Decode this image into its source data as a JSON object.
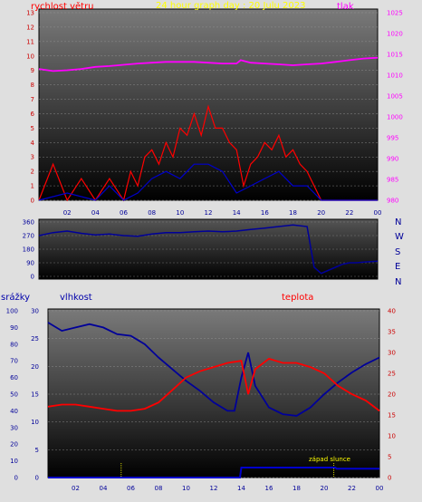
{
  "header": {
    "wind_label": "rychlost větru",
    "title": "24 hour graph day : 20 Julu 2023",
    "pressure_label": "tlak"
  },
  "directions": [
    "N",
    "W",
    "S",
    "E",
    "N"
  ],
  "bottom_labels": {
    "rain": "srážky",
    "humidity": "vlhkost",
    "temperature": "teplota",
    "sunset": "západ slunce"
  },
  "colors": {
    "wind": "#ff0000",
    "gust": "#0000cc",
    "pressure": "#ff00ff",
    "direction": "#000099",
    "humidity": "#000099",
    "temperature": "#ff0000",
    "rain": "#0000cc",
    "left_axis_text": "#cc0000",
    "right_axis_text": "#ff00ff",
    "title_text": "#ffff00"
  },
  "chart_data": [
    {
      "type": "line",
      "x_ticks": [
        "02",
        "04",
        "06",
        "08",
        "10",
        "12",
        "14",
        "16",
        "18",
        "20",
        "22",
        "00"
      ],
      "y_left_ticks": [
        0,
        1,
        2,
        3,
        4,
        5,
        6,
        7,
        8,
        9,
        10,
        11,
        12,
        13
      ],
      "y_left_range": [
        0,
        13
      ],
      "y_right_ticks": [
        980,
        985,
        990,
        995,
        1000,
        1005,
        1010,
        1015,
        1020,
        1025
      ],
      "y_right_range": [
        980,
        1025
      ],
      "series": [
        {
          "name": "tlak",
          "axis": "right",
          "x": [
            0,
            1,
            2,
            3,
            4,
            5,
            6,
            7,
            8,
            9,
            10,
            11,
            12,
            13,
            14,
            14.3,
            15,
            16,
            17,
            18,
            19,
            20,
            21,
            22,
            23,
            24
          ],
          "values": [
            1011.5,
            1011.0,
            1011.2,
            1011.5,
            1012.0,
            1012.2,
            1012.5,
            1012.8,
            1013.0,
            1013.2,
            1013.2,
            1013.2,
            1013.0,
            1012.8,
            1012.8,
            1013.6,
            1013.0,
            1012.8,
            1012.6,
            1012.4,
            1012.6,
            1012.8,
            1013.2,
            1013.6,
            1014.0,
            1014.2
          ]
        },
        {
          "name": "rychlost větru",
          "axis": "left",
          "x": [
            0,
            1,
            2,
            3,
            4,
            5,
            6,
            6.5,
            7,
            7.5,
            8,
            8.5,
            9,
            9.5,
            10,
            10.5,
            11,
            11.5,
            12,
            12.5,
            13,
            13.5,
            14,
            14.5,
            15,
            15.5,
            16,
            16.5,
            17,
            17.5,
            18,
            18.5,
            19,
            19.5,
            20,
            21,
            22,
            23,
            24
          ],
          "values": [
            0,
            2.5,
            0,
            1.5,
            0,
            1.5,
            0,
            2,
            1,
            3,
            3.5,
            2.5,
            4,
            3,
            5,
            4.5,
            6,
            4.5,
            6.5,
            5,
            5,
            4,
            3.5,
            1,
            2.5,
            3,
            4,
            3.5,
            4.5,
            3,
            3.5,
            2.5,
            2,
            1,
            0,
            0,
            0,
            0,
            0
          ]
        },
        {
          "name": "gust",
          "axis": "left",
          "x": [
            0,
            2,
            4,
            5,
            6,
            7,
            8,
            9,
            10,
            11,
            12,
            13,
            14,
            15,
            16,
            17,
            18,
            19,
            19.5,
            20,
            22,
            24
          ],
          "values": [
            0,
            0.5,
            0,
            1,
            0,
            0.5,
            1.5,
            2,
            1.5,
            2.5,
            2.5,
            2,
            0.5,
            1,
            1.5,
            2,
            1,
            1,
            0.5,
            0,
            0,
            0
          ]
        }
      ]
    },
    {
      "type": "line",
      "x_ticks": [
        "02",
        "04",
        "06",
        "08",
        "10",
        "12",
        "14",
        "16",
        "18",
        "20",
        "22",
        "00"
      ],
      "y_ticks": [
        0,
        90,
        180,
        270,
        360
      ],
      "y_range": [
        0,
        360
      ],
      "series": [
        {
          "name": "direction",
          "x": [
            0,
            1,
            2,
            3,
            4,
            5,
            6,
            7,
            8,
            9,
            10,
            11,
            12,
            13,
            14,
            15,
            16,
            17,
            18,
            19,
            19.5,
            20,
            21,
            21.5,
            22,
            22.5,
            23,
            24
          ],
          "values": [
            270,
            290,
            300,
            285,
            275,
            280,
            270,
            265,
            280,
            290,
            290,
            295,
            300,
            295,
            300,
            310,
            320,
            330,
            340,
            330,
            60,
            20,
            60,
            80,
            90,
            90,
            95,
            100
          ]
        }
      ]
    },
    {
      "type": "line",
      "x_ticks": [
        "02",
        "04",
        "06",
        "08",
        "10",
        "12",
        "14",
        "16",
        "18",
        "20",
        "22",
        "00"
      ],
      "y_left_outer_ticks": [
        0,
        10,
        20,
        30,
        40,
        50,
        60,
        70,
        80,
        90,
        100
      ],
      "y_left_outer_range": [
        0,
        100
      ],
      "y_left_inner_ticks": [
        0,
        5,
        10,
        15,
        20,
        25,
        30
      ],
      "y_left_inner_range": [
        0,
        30
      ],
      "y_right_ticks": [
        0,
        5,
        10,
        15,
        20,
        25,
        30,
        35,
        40
      ],
      "y_right_range": [
        0,
        40
      ],
      "series": [
        {
          "name": "vlhkost",
          "axis": "outer",
          "x": [
            0,
            1,
            2,
            3,
            4,
            5,
            6,
            7,
            8,
            9,
            10,
            11,
            12,
            13,
            13.5,
            14,
            14.5,
            15,
            16,
            17,
            18,
            19,
            20,
            21,
            22,
            23,
            24
          ],
          "values": [
            93,
            88,
            90,
            92,
            90,
            86,
            85,
            80,
            72,
            65,
            58,
            52,
            45,
            40,
            40,
            60,
            75,
            55,
            42,
            38,
            37,
            42,
            50,
            57,
            63,
            68,
            72
          ]
        },
        {
          "name": "teplota",
          "axis": "right",
          "x": [
            0,
            1,
            2,
            3,
            4,
            5,
            6,
            7,
            8,
            9,
            10,
            11,
            12,
            13,
            14,
            14.5,
            15,
            16,
            17,
            18,
            19,
            20,
            21,
            22,
            23,
            24
          ],
          "values": [
            17,
            17.5,
            17.5,
            17,
            16.5,
            16,
            16,
            16.5,
            18,
            21,
            24,
            25.5,
            26.5,
            27.5,
            28,
            20,
            26,
            28.5,
            27.5,
            27.5,
            26.5,
            25,
            22,
            20,
            18.5,
            16
          ]
        },
        {
          "name": "srážky",
          "axis": "inner",
          "x": [
            0,
            13.9,
            14,
            20.8,
            20.9,
            24
          ],
          "values": [
            0,
            0,
            1.8,
            1.8,
            1.6,
            1.6
          ]
        }
      ]
    }
  ]
}
